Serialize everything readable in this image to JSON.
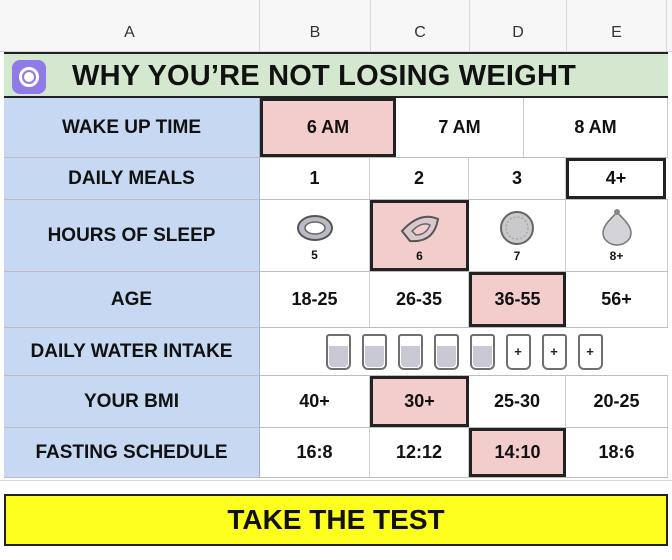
{
  "columns": [
    "A",
    "B",
    "C",
    "D",
    "E"
  ],
  "title": "WHY YOU’RE NOT LOSING WEIGHT",
  "rows": {
    "wake": {
      "label": "WAKE UP TIME",
      "options": [
        "6 AM",
        "7 AM",
        "8 AM"
      ]
    },
    "meals": {
      "label": "DAILY MEALS",
      "options": [
        "1",
        "2",
        "3",
        "4+"
      ]
    },
    "sleep": {
      "label": "HOURS OF SLEEP",
      "options": [
        "5",
        "6",
        "7",
        "8+"
      ]
    },
    "age": {
      "label": "AGE",
      "options": [
        "18-25",
        "26-35",
        "36-55",
        "56+"
      ]
    },
    "water": {
      "label": "DAILY WATER INTAKE",
      "full_glasses": 5,
      "plus_glasses": [
        "+",
        "+",
        "+"
      ]
    },
    "bmi": {
      "label": "YOUR BMI",
      "options": [
        "40+",
        "30+",
        "25-30",
        "20-25"
      ]
    },
    "fasting": {
      "label": "FASTING SCHEDULE",
      "options": [
        "16:8",
        "12:12",
        "14:10",
        "18:6"
      ]
    }
  },
  "cta": "TAKE THE TEST",
  "colors": {
    "label_bg": "#c7d8f2",
    "selected_bg": "#f3cccc",
    "title_bg": "#d4e8cf",
    "cta_bg": "#ffff1f",
    "logo": "#8f7ae8"
  }
}
